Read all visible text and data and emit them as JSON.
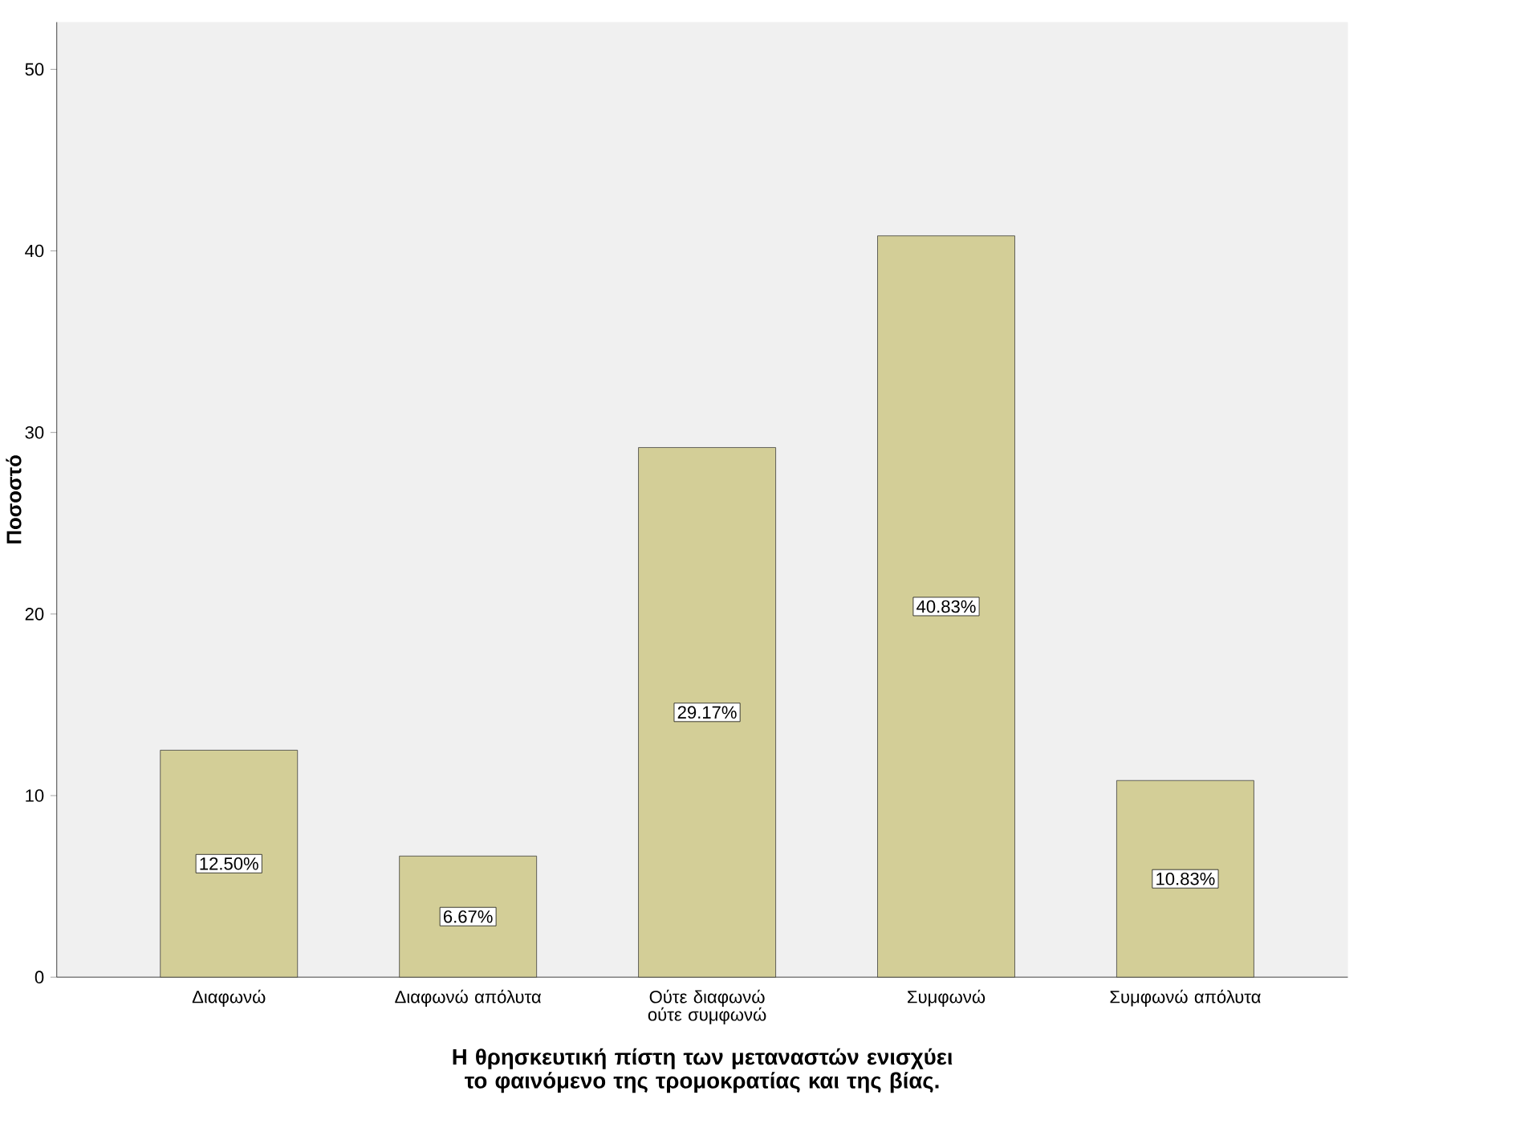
{
  "chart_data": {
    "type": "bar",
    "categories": [
      "Διαφωνώ",
      "Διαφωνώ απόλυτα",
      "Ούτε διαφωνώ ούτε συμφωνώ",
      "Συμφωνώ",
      "Συμφωνώ απόλυτα"
    ],
    "values": [
      12.5,
      6.67,
      29.17,
      40.83,
      10.83
    ],
    "value_labels": [
      "12.50%",
      "6.67%",
      "29.17%",
      "40.83%",
      "10.83%"
    ],
    "color": "#d3ce97",
    "xlabel": "Η θρησκευτική πίστη των μεταναστών ενισχύει το φαινόμενο της τρομοκρατίας και της βίας.",
    "ylabel": "Ποσοστό",
    "ylim": [
      0,
      52.6
    ],
    "yticks": [
      0,
      10,
      20,
      30,
      40,
      50
    ]
  }
}
